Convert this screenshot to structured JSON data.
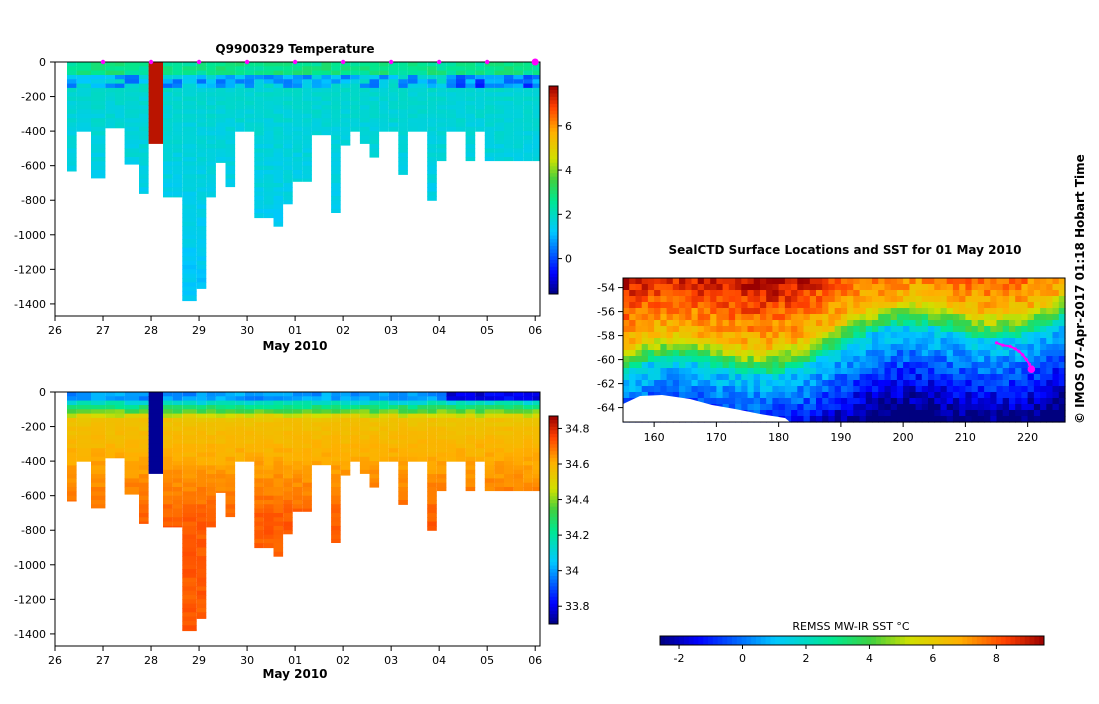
{
  "chart_data": [
    {
      "type": "heatmap",
      "id": "temperature-section",
      "title": "Q9900329  Temperature",
      "xlabel": "May 2010",
      "x_ticks": [
        "26",
        "27",
        "28",
        "29",
        "30",
        "01",
        "02",
        "03",
        "04",
        "05",
        "06"
      ],
      "xlim": [
        26,
        36.1
      ],
      "y_ticks": [
        0,
        -200,
        -400,
        -600,
        -800,
        -1000,
        -1200,
        -1400
      ],
      "ylim": [
        -1470,
        0
      ],
      "colorbar": {
        "ticks": [
          0,
          2,
          4,
          6
        ],
        "range": [
          -1.6,
          7.8
        ]
      },
      "profile_times": [
        26.3,
        26.5,
        26.8,
        27.1,
        27.3,
        27.5,
        27.8,
        28.0,
        28.3,
        28.5,
        28.7,
        29.0,
        29.2,
        29.4,
        29.6,
        29.8,
        30.0,
        30.2,
        30.4,
        30.6,
        30.8,
        31.0,
        31.2,
        31.4,
        31.6,
        31.8,
        32.0,
        32.2,
        32.4,
        32.6,
        32.8,
        33.0,
        33.2,
        33.4,
        33.6,
        33.8,
        34.0,
        34.2,
        34.4,
        34.6,
        34.8,
        35.0,
        35.2,
        35.4,
        35.6,
        35.8,
        36.0
      ],
      "profile_depths": [
        630,
        400,
        670,
        380,
        380,
        590,
        760,
        470,
        780,
        780,
        1380,
        1310,
        780,
        580,
        720,
        400,
        400,
        900,
        900,
        950,
        820,
        690,
        690,
        420,
        420,
        870,
        480,
        400,
        470,
        550,
        400,
        400,
        650,
        400,
        400,
        800,
        570,
        400,
        400,
        570,
        400,
        570,
        570,
        570,
        570,
        570,
        570
      ],
      "surface_temperature": 2.6,
      "deep_temperature": 1.3,
      "anomalous_warm_profile_time": 28.0,
      "anomalous_warm_value": 7.5,
      "marker_times": [
        27,
        28,
        29,
        30,
        31,
        32,
        33,
        34,
        35,
        36
      ]
    },
    {
      "type": "heatmap",
      "id": "salinity-section",
      "title": "",
      "xlabel": "May 2010",
      "x_ticks": [
        "26",
        "27",
        "28",
        "29",
        "30",
        "01",
        "02",
        "03",
        "04",
        "05",
        "06"
      ],
      "xlim": [
        26,
        36.1
      ],
      "y_ticks": [
        0,
        -200,
        -400,
        -600,
        -800,
        -1000,
        -1200,
        -1400
      ],
      "ylim": [
        -1470,
        0
      ],
      "colorbar": {
        "ticks": [
          33.8,
          34,
          34.2,
          34.4,
          34.6,
          34.8
        ],
        "range": [
          33.7,
          34.87
        ]
      },
      "surface_salinity": 34.0,
      "deep_salinity": 34.72,
      "anomalous_fresh_profile_time": 28.0,
      "anomalous_fresh_value": 33.72
    },
    {
      "type": "heatmap",
      "id": "sst-map",
      "title": "SealCTD Surface Locations and SST for 01 May 2010",
      "x_ticks": [
        "160",
        "170",
        "180",
        "190",
        "200",
        "210",
        "220"
      ],
      "xlim": [
        155,
        226
      ],
      "y_ticks": [
        "-54",
        "-56",
        "-58",
        "-60",
        "-62",
        "-64"
      ],
      "ylim": [
        -65.2,
        -53.2
      ],
      "colorbar": {
        "label": "REMSS MW-IR SST °C",
        "ticks": [
          -2,
          0,
          2,
          4,
          6,
          8
        ],
        "range": [
          -2.6,
          9.5
        ]
      },
      "track_lon": [
        215.0,
        216.0,
        217.2,
        218.0,
        218.6,
        219.2,
        219.8,
        220.3,
        220.6
      ],
      "track_lat": [
        -58.6,
        -58.8,
        -58.9,
        -59.1,
        -59.3,
        -59.6,
        -60.0,
        -60.4,
        -60.8
      ],
      "last_position": {
        "lon": 220.6,
        "lat": -60.8
      }
    }
  ],
  "stamp": "© IMOS 07-Apr-2017 01:18 Hobart Time"
}
